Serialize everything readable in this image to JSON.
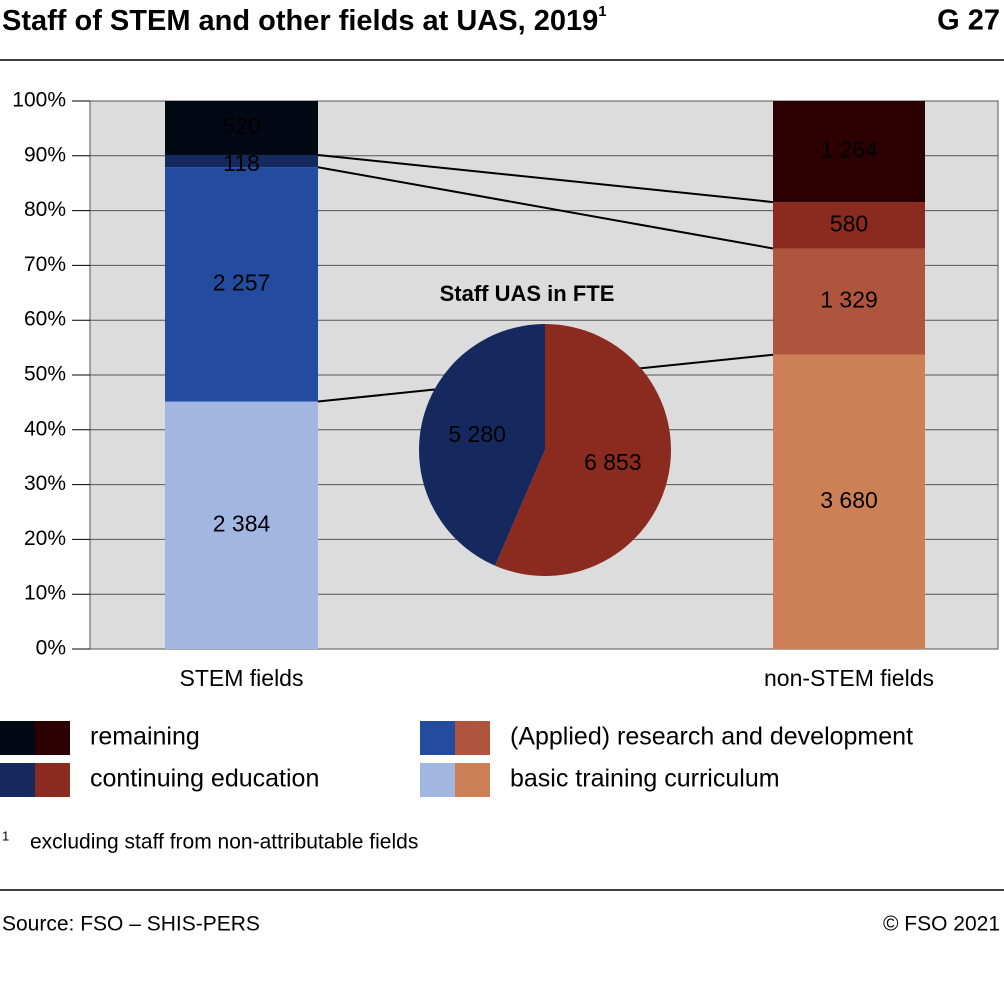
{
  "title": "Staff of STEM and other fields at UAS, 2019",
  "footnote_mark": "1",
  "figure_id": "G 27",
  "footnote": "excluding staff from non-attributable fields",
  "source": "Source: FSO – SHIS-PERS",
  "copyright": "© FSO 2021",
  "chart_data": [
    {
      "type": "bar",
      "stack": "percent",
      "categories": [
        "STEM fields",
        "non-STEM fields"
      ],
      "ylim": [
        0,
        100
      ],
      "yticks": [
        {
          "value": 0,
          "label": "0%"
        },
        {
          "value": 10,
          "label": "10%"
        },
        {
          "value": 20,
          "label": "20%"
        },
        {
          "value": 30,
          "label": "30%"
        },
        {
          "value": 40,
          "label": "40%"
        },
        {
          "value": 50,
          "label": "50%"
        },
        {
          "value": 60,
          "label": "60%"
        },
        {
          "value": 70,
          "label": "70%"
        },
        {
          "value": 80,
          "label": "80%"
        },
        {
          "value": 90,
          "label": "90%"
        },
        {
          "value": 100,
          "label": "100%"
        }
      ],
      "grid": true,
      "series": [
        {
          "name": "basic training curriculum",
          "colors": [
            "#a2b6e2",
            "#cd8056"
          ],
          "values": [
            2384,
            3680
          ],
          "value_labels": [
            "2 384",
            "3 680"
          ]
        },
        {
          "name": "(Applied) research and development",
          "colors": [
            "#234c9f",
            "#b0553d"
          ],
          "values": [
            2257,
            1329
          ],
          "value_labels": [
            "2 257",
            "1 329"
          ]
        },
        {
          "name": "continuing education",
          "colors": [
            "#16295f",
            "#8b2a1f"
          ],
          "values": [
            118,
            580
          ]
        },
        {
          "name": "remaining",
          "colors": [
            "#020914",
            "#2c0002"
          ],
          "values": [
            520,
            1264
          ],
          "value_labels": [
            "520",
            "1 264"
          ]
        }
      ]
    },
    {
      "type": "pie",
      "title": "Staff UAS in FTE",
      "categories": [
        "STEM fields",
        "non-STEM fields"
      ],
      "colors": [
        "#16295f",
        "#8b2a1f"
      ],
      "values": [
        5280,
        6853
      ],
      "value_labels": [
        "5 280",
        "6 853"
      ]
    }
  ]
}
